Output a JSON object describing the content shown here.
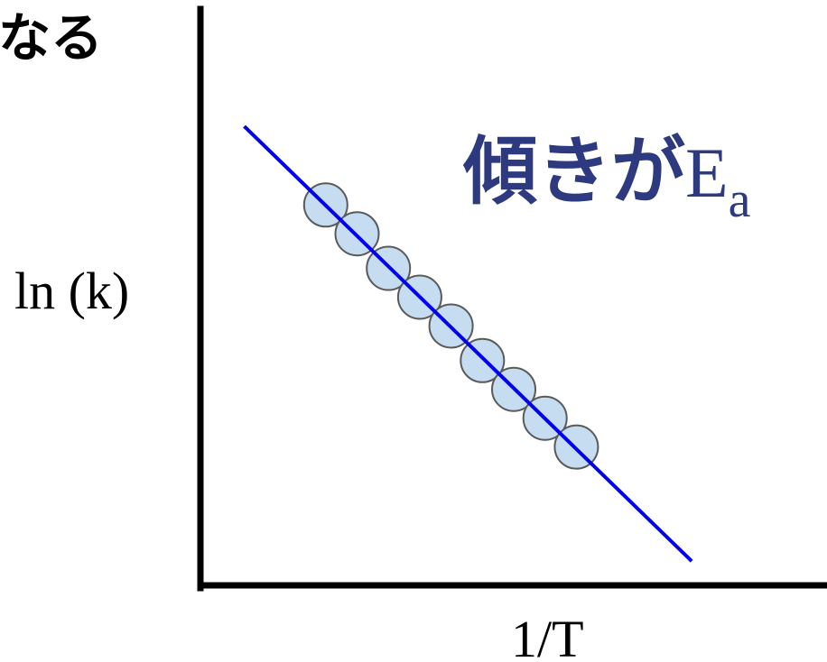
{
  "top_text": "なる",
  "colors": {
    "axis": "#000000",
    "fit_line": "#0000ee",
    "point_fill": "#c5dcf1",
    "point_stroke": "#5a5a5a",
    "annotation": "#2e3a80",
    "text": "#000000"
  },
  "chart_data": {
    "type": "scatter",
    "xlabel": "1/T",
    "ylabel": "ln (k)",
    "annotation": {
      "prefix": "傾きが",
      "symbol": "E",
      "subscript": "a"
    },
    "points": [
      {
        "x": 0.2,
        "y": 0.66
      },
      {
        "x": 0.25,
        "y": 0.61
      },
      {
        "x": 0.3,
        "y": 0.55
      },
      {
        "x": 0.35,
        "y": 0.5
      },
      {
        "x": 0.4,
        "y": 0.45
      },
      {
        "x": 0.45,
        "y": 0.39
      },
      {
        "x": 0.5,
        "y": 0.34
      },
      {
        "x": 0.55,
        "y": 0.29
      },
      {
        "x": 0.6,
        "y": 0.24
      }
    ]
  }
}
